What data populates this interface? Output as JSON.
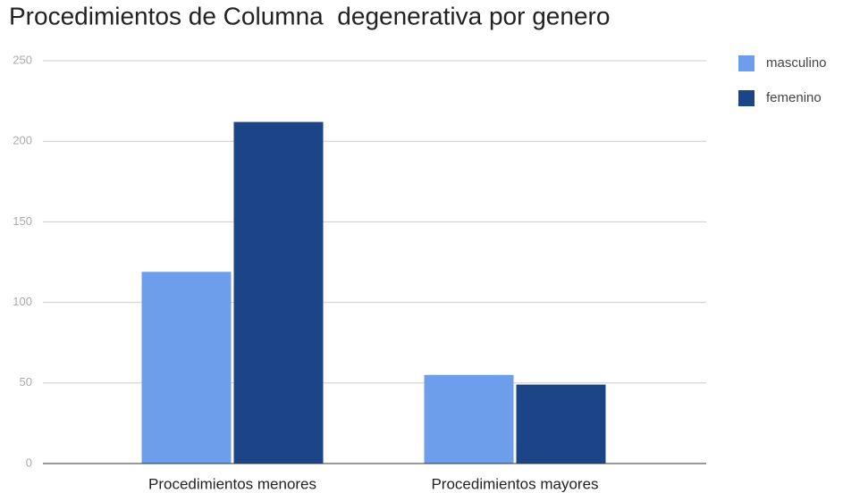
{
  "chart_data": {
    "type": "bar",
    "title": "Procedimientos de Columna  degenerativa por genero",
    "categories": [
      "Procedimientos menores",
      "Procedimientos mayores"
    ],
    "series": [
      {
        "name": "masculino",
        "color": "#6d9eeb",
        "values": [
          119,
          55
        ]
      },
      {
        "name": "femenino",
        "color": "#1c4587",
        "values": [
          212,
          49
        ]
      }
    ],
    "ylim": [
      0,
      250
    ],
    "yticks": [
      0,
      50,
      100,
      150,
      200,
      250
    ],
    "grid": true,
    "legend": "right"
  }
}
